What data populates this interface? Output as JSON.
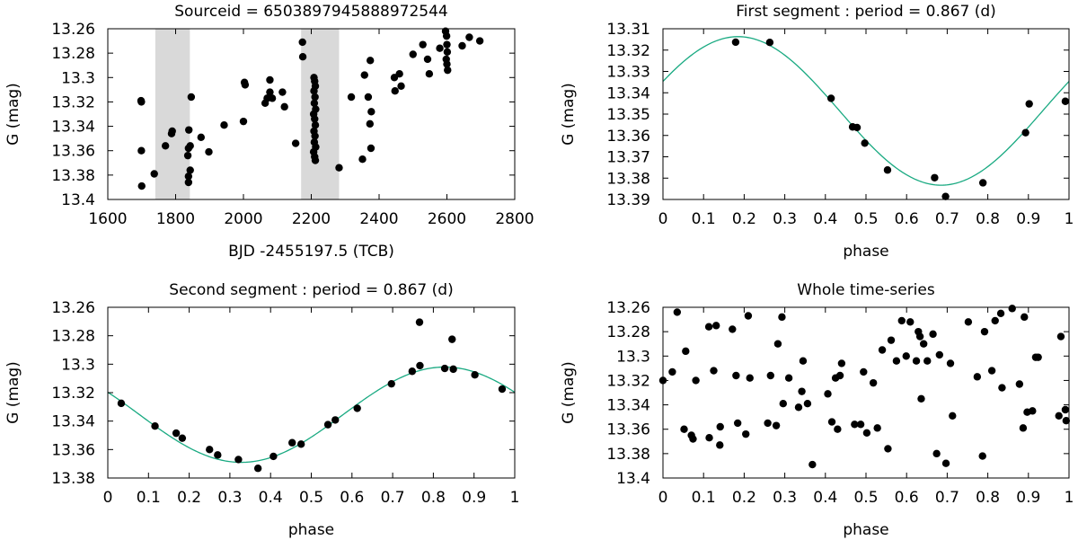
{
  "chart_data": [
    {
      "type": "scatter",
      "title": "Sourceid = 6503897945888972544",
      "xlabel": "BJD -2455197.5 (TCB)",
      "ylabel": "G (mag)",
      "xlim": [
        1600,
        2800
      ],
      "ylim": [
        13.4,
        13.26
      ],
      "y_inverted": true,
      "x_ticks": [
        "1600",
        "1800",
        "2000",
        "2200",
        "2400",
        "2600",
        "2800"
      ],
      "y_ticks": [
        "13.26",
        "13.28",
        "13.3",
        "13.32",
        "13.34",
        "13.36",
        "13.38",
        "13.4"
      ],
      "shaded_ranges": [
        [
          1740,
          1842
        ],
        [
          2170,
          2282
        ]
      ],
      "shade_color": "#d9d9d9",
      "point_color": "#000000",
      "points": [
        [
          1698,
          13.319
        ],
        [
          1699,
          13.32
        ],
        [
          1699,
          13.36
        ],
        [
          1700,
          13.389
        ],
        [
          1737,
          13.379
        ],
        [
          1770,
          13.356
        ],
        [
          1788,
          13.346
        ],
        [
          1790,
          13.344
        ],
        [
          1839,
          13.343
        ],
        [
          1838,
          13.358
        ],
        [
          1836,
          13.364
        ],
        [
          1843,
          13.356
        ],
        [
          1843,
          13.376
        ],
        [
          1838,
          13.381
        ],
        [
          1838,
          13.386
        ],
        [
          1846,
          13.316
        ],
        [
          1875,
          13.349
        ],
        [
          1898,
          13.361
        ],
        [
          1943,
          13.339
        ],
        [
          2000,
          13.336
        ],
        [
          2003,
          13.304
        ],
        [
          2005,
          13.306
        ],
        [
          2064,
          13.321
        ],
        [
          2070,
          13.317
        ],
        [
          2078,
          13.302
        ],
        [
          2078,
          13.312
        ],
        [
          2085,
          13.317
        ],
        [
          2115,
          13.312
        ],
        [
          2121,
          13.324
        ],
        [
          2154,
          13.354
        ],
        [
          2174,
          13.271
        ],
        [
          2175,
          13.283
        ],
        [
          2208,
          13.3
        ],
        [
          2210,
          13.303
        ],
        [
          2212,
          13.307
        ],
        [
          2208,
          13.311
        ],
        [
          2211,
          13.316
        ],
        [
          2209,
          13.321
        ],
        [
          2213,
          13.326
        ],
        [
          2207,
          13.33
        ],
        [
          2210,
          13.334
        ],
        [
          2212,
          13.339
        ],
        [
          2208,
          13.344
        ],
        [
          2211,
          13.348
        ],
        [
          2209,
          13.353
        ],
        [
          2213,
          13.357
        ],
        [
          2207,
          13.361
        ],
        [
          2210,
          13.365
        ],
        [
          2212,
          13.368
        ],
        [
          2282,
          13.374
        ],
        [
          2318,
          13.316
        ],
        [
          2351,
          13.367
        ],
        [
          2357,
          13.298
        ],
        [
          2368,
          13.316
        ],
        [
          2374,
          13.286
        ],
        [
          2377,
          13.328
        ],
        [
          2376,
          13.358
        ],
        [
          2373,
          13.338
        ],
        [
          2445,
          13.3
        ],
        [
          2447,
          13.311
        ],
        [
          2460,
          13.297
        ],
        [
          2465,
          13.307
        ],
        [
          2500,
          13.281
        ],
        [
          2529,
          13.273
        ],
        [
          2543,
          13.285
        ],
        [
          2548,
          13.297
        ],
        [
          2579,
          13.276
        ],
        [
          2596,
          13.262
        ],
        [
          2599,
          13.266
        ],
        [
          2600,
          13.273
        ],
        [
          2601,
          13.279
        ],
        [
          2598,
          13.285
        ],
        [
          2600,
          13.289
        ],
        [
          2602,
          13.294
        ],
        [
          2645,
          13.274
        ],
        [
          2666,
          13.267
        ],
        [
          2697,
          13.27
        ]
      ]
    },
    {
      "type": "scatter",
      "title": "First segment : period = 0.867 (d)",
      "xlabel": "phase",
      "ylabel": "G (mag)",
      "xlim": [
        0,
        1
      ],
      "ylim": [
        13.39,
        13.31
      ],
      "y_inverted": true,
      "x_ticks": [
        "0",
        "0.1",
        "0.2",
        "0.3",
        "0.4",
        "0.5",
        "0.6",
        "0.7",
        "0.8",
        "0.9",
        "1"
      ],
      "y_ticks": [
        "13.31",
        "13.32",
        "13.33",
        "13.34",
        "13.35",
        "13.36",
        "13.37",
        "13.38",
        "13.39"
      ],
      "point_color": "#000000",
      "curve_color": "#1aaa82",
      "fit": {
        "mean": 13.3485,
        "amplitude": 0.0348,
        "phase_of_max": 0.185
      },
      "points": [
        [
          0.179,
          13.3163
        ],
        [
          0.263,
          13.3164
        ],
        [
          0.414,
          13.3426
        ],
        [
          0.467,
          13.356
        ],
        [
          0.478,
          13.3563
        ],
        [
          0.497,
          13.3636
        ],
        [
          0.553,
          13.3762
        ],
        [
          0.669,
          13.3798
        ],
        [
          0.696,
          13.3886
        ],
        [
          0.788,
          13.3822
        ],
        [
          0.893,
          13.3587
        ],
        [
          0.902,
          13.3452
        ],
        [
          0.991,
          13.344
        ]
      ]
    },
    {
      "type": "scatter",
      "title": "Second segment : period = 0.867 (d)",
      "xlabel": "phase",
      "ylabel": "G (mag)",
      "xlim": [
        0,
        1
      ],
      "ylim": [
        13.38,
        13.26
      ],
      "y_inverted": true,
      "x_ticks": [
        "0",
        "0.1",
        "0.2",
        "0.3",
        "0.4",
        "0.5",
        "0.6",
        "0.7",
        "0.8",
        "0.9",
        "1"
      ],
      "y_ticks": [
        "13.26",
        "13.28",
        "13.3",
        "13.32",
        "13.34",
        "13.36",
        "13.38"
      ],
      "point_color": "#000000",
      "curve_color": "#1aaa82",
      "fit": {
        "mean": 13.3355,
        "amplitude": 0.0335,
        "phase_of_max": 0.828
      },
      "points": [
        [
          0.033,
          13.3275
        ],
        [
          0.116,
          13.3435
        ],
        [
          0.168,
          13.3485
        ],
        [
          0.183,
          13.352
        ],
        [
          0.25,
          13.36
        ],
        [
          0.27,
          13.3638
        ],
        [
          0.321,
          13.367
        ],
        [
          0.369,
          13.3732
        ],
        [
          0.407,
          13.3648
        ],
        [
          0.453,
          13.3552
        ],
        [
          0.475,
          13.3562
        ],
        [
          0.541,
          13.3425
        ],
        [
          0.559,
          13.3392
        ],
        [
          0.613,
          13.331
        ],
        [
          0.697,
          13.3138
        ],
        [
          0.748,
          13.305
        ],
        [
          0.766,
          13.2705
        ],
        [
          0.767,
          13.301
        ],
        [
          0.828,
          13.303
        ],
        [
          0.846,
          13.2825
        ],
        [
          0.849,
          13.3035
        ],
        [
          0.902,
          13.3075
        ],
        [
          0.969,
          13.3175
        ]
      ]
    },
    {
      "type": "scatter",
      "title": "Whole time-series",
      "xlabel": "phase",
      "ylabel": "G (mag)",
      "xlim": [
        0,
        1
      ],
      "ylim": [
        13.4,
        13.26
      ],
      "y_inverted": true,
      "x_ticks": [
        "0",
        "0.1",
        "0.2",
        "0.3",
        "0.4",
        "0.5",
        "0.6",
        "0.7",
        "0.8",
        "0.9",
        "1"
      ],
      "y_ticks": [
        "13.26",
        "13.28",
        "13.3",
        "13.32",
        "13.34",
        "13.36",
        "13.38",
        "13.4"
      ],
      "point_color": "#000000",
      "points": [
        [
          0.0,
          13.32
        ],
        [
          0.023,
          13.313
        ],
        [
          0.035,
          13.264
        ],
        [
          0.052,
          13.36
        ],
        [
          0.056,
          13.296
        ],
        [
          0.07,
          13.365
        ],
        [
          0.074,
          13.368
        ],
        [
          0.081,
          13.32
        ],
        [
          0.113,
          13.276
        ],
        [
          0.114,
          13.367
        ],
        [
          0.125,
          13.312
        ],
        [
          0.131,
          13.275
        ],
        [
          0.14,
          13.373
        ],
        [
          0.141,
          13.358
        ],
        [
          0.171,
          13.278
        ],
        [
          0.18,
          13.316
        ],
        [
          0.184,
          13.355
        ],
        [
          0.204,
          13.364
        ],
        [
          0.21,
          13.267
        ],
        [
          0.214,
          13.318
        ],
        [
          0.258,
          13.355
        ],
        [
          0.265,
          13.316
        ],
        [
          0.279,
          13.357
        ],
        [
          0.283,
          13.29
        ],
        [
          0.293,
          13.268
        ],
        [
          0.296,
          13.339
        ],
        [
          0.31,
          13.318
        ],
        [
          0.334,
          13.342
        ],
        [
          0.342,
          13.329
        ],
        [
          0.345,
          13.304
        ],
        [
          0.356,
          13.339
        ],
        [
          0.368,
          13.389
        ],
        [
          0.406,
          13.331
        ],
        [
          0.416,
          13.354
        ],
        [
          0.425,
          13.318
        ],
        [
          0.43,
          13.36
        ],
        [
          0.436,
          13.316
        ],
        [
          0.44,
          13.306
        ],
        [
          0.472,
          13.356
        ],
        [
          0.487,
          13.356
        ],
        [
          0.494,
          13.313
        ],
        [
          0.502,
          13.363
        ],
        [
          0.518,
          13.322
        ],
        [
          0.528,
          13.359
        ],
        [
          0.54,
          13.295
        ],
        [
          0.554,
          13.376
        ],
        [
          0.562,
          13.287
        ],
        [
          0.575,
          13.304
        ],
        [
          0.588,
          13.271
        ],
        [
          0.599,
          13.3
        ],
        [
          0.609,
          13.272
        ],
        [
          0.624,
          13.304
        ],
        [
          0.629,
          13.28
        ],
        [
          0.633,
          13.284
        ],
        [
          0.636,
          13.335
        ],
        [
          0.642,
          13.29
        ],
        [
          0.651,
          13.304
        ],
        [
          0.665,
          13.282
        ],
        [
          0.674,
          13.38
        ],
        [
          0.681,
          13.299
        ],
        [
          0.697,
          13.388
        ],
        [
          0.708,
          13.306
        ],
        [
          0.713,
          13.349
        ],
        [
          0.752,
          13.272
        ],
        [
          0.774,
          13.317
        ],
        [
          0.787,
          13.382
        ],
        [
          0.792,
          13.28
        ],
        [
          0.81,
          13.312
        ],
        [
          0.818,
          13.271
        ],
        [
          0.832,
          13.265
        ],
        [
          0.835,
          13.326
        ],
        [
          0.86,
          13.261
        ],
        [
          0.878,
          13.323
        ],
        [
          0.887,
          13.359
        ],
        [
          0.89,
          13.268
        ],
        [
          0.897,
          13.346
        ],
        [
          0.91,
          13.345
        ],
        [
          0.918,
          13.301
        ],
        [
          0.924,
          13.301
        ],
        [
          0.975,
          13.349
        ],
        [
          0.98,
          13.284
        ],
        [
          0.991,
          13.344
        ],
        [
          0.993,
          13.353
        ]
      ]
    }
  ]
}
